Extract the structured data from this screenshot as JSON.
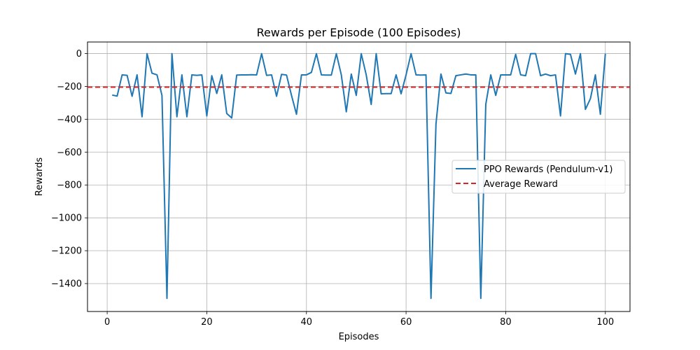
{
  "chart_data": {
    "type": "line",
    "title": "Rewards per Episode (100 Episodes)",
    "xlabel": "Episodes",
    "ylabel": "Rewards",
    "xlim": [
      -3.95,
      104.95
    ],
    "ylim": [
      -1570,
      70
    ],
    "xticks": [
      0,
      20,
      40,
      60,
      80,
      100
    ],
    "yticks": [
      0,
      -200,
      -400,
      -600,
      -800,
      -1000,
      -1200,
      -1400
    ],
    "xtick_labels": [
      "0",
      "20",
      "40",
      "60",
      "80",
      "100"
    ],
    "ytick_labels": [
      "0",
      "−200",
      "−400",
      "−600",
      "−800",
      "−1000",
      "−1200",
      "−1400"
    ],
    "grid": true,
    "legend_position": "center-right",
    "series": [
      {
        "name": "PPO Rewards (Pendulum-v1)",
        "color": "#1f77b4",
        "style": "solid",
        "x": [
          1,
          2,
          3,
          4,
          5,
          6,
          7,
          8,
          9,
          10,
          11,
          12,
          13,
          14,
          15,
          16,
          17,
          18,
          19,
          20,
          21,
          22,
          23,
          24,
          25,
          26,
          27,
          28,
          29,
          30,
          31,
          32,
          33,
          34,
          35,
          36,
          37,
          38,
          39,
          40,
          41,
          42,
          43,
          44,
          45,
          46,
          47,
          48,
          49,
          50,
          51,
          52,
          53,
          54,
          55,
          56,
          57,
          58,
          59,
          60,
          61,
          62,
          63,
          64,
          65,
          66,
          67,
          68,
          69,
          70,
          71,
          72,
          73,
          74,
          75,
          76,
          77,
          78,
          79,
          80,
          81,
          82,
          83,
          84,
          85,
          86,
          87,
          88,
          89,
          90,
          91,
          92,
          93,
          94,
          95,
          96,
          97,
          98,
          99,
          100
        ],
        "y": [
          -253,
          -259,
          -130,
          -133,
          -260,
          -130,
          -385,
          -1,
          -120,
          -130,
          -255,
          -1490,
          -1,
          -385,
          -130,
          -385,
          -130,
          -133,
          -130,
          -380,
          -135,
          -243,
          -130,
          -365,
          -392,
          -131,
          -130,
          -130,
          -129,
          -130,
          -1,
          -133,
          -130,
          -260,
          -127,
          -131,
          -255,
          -370,
          -130,
          -130,
          -115,
          -1,
          -130,
          -131,
          -131,
          -1,
          -130,
          -355,
          -125,
          -255,
          -1,
          -130,
          -310,
          -1,
          -245,
          -244,
          -244,
          -130,
          -245,
          -130,
          -1,
          -130,
          -131,
          -130,
          -1490,
          -430,
          -125,
          -240,
          -243,
          -135,
          -130,
          -125,
          -130,
          -130,
          -1490,
          -310,
          -130,
          -255,
          -130,
          -130,
          -130,
          -5,
          -130,
          -135,
          -1,
          -1,
          -135,
          -125,
          -135,
          -130,
          -380,
          -1,
          -5,
          -125,
          -1,
          -340,
          -275,
          -130,
          -370,
          -1
        ]
      },
      {
        "name": "Average Reward",
        "color": "#d62728",
        "style": "dashed",
        "y_constant": -205
      }
    ]
  }
}
